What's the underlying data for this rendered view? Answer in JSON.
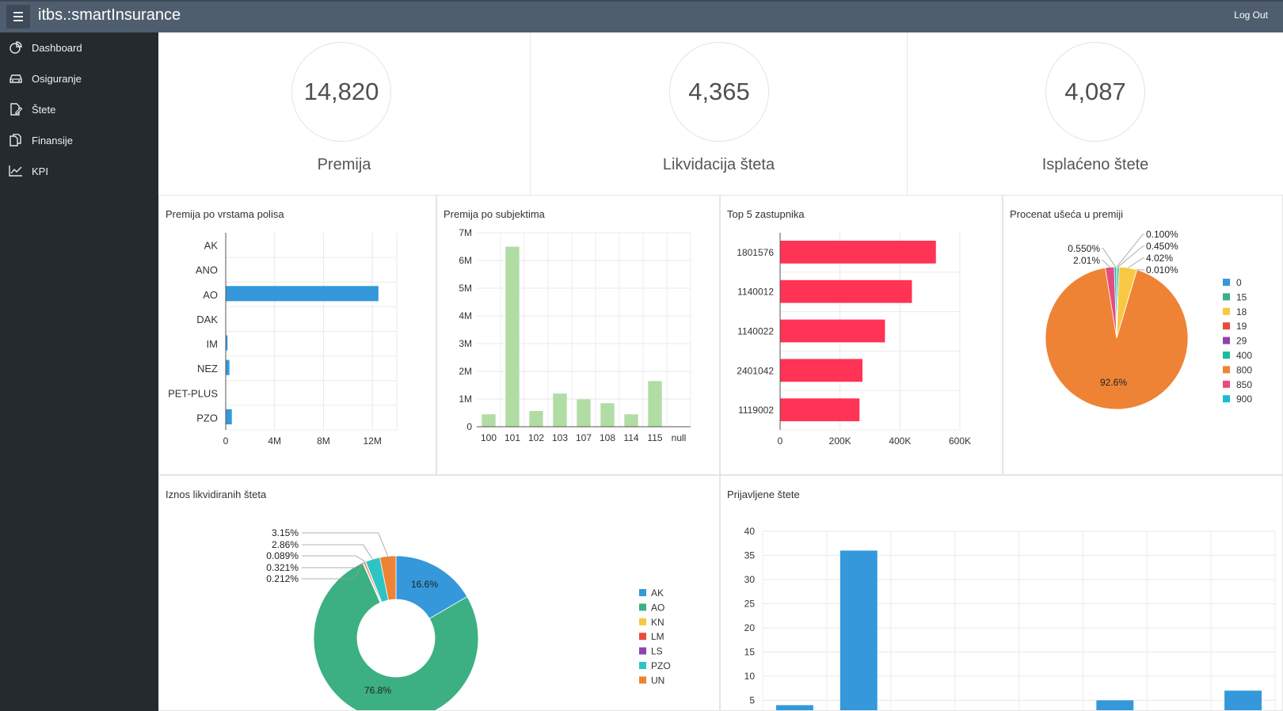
{
  "header": {
    "app_title": "itbs.:smartInsurance",
    "logout_label": "Log Out"
  },
  "sidebar": {
    "items": [
      {
        "label": "Dashboard",
        "icon": "pie-chart-icon"
      },
      {
        "label": "Osiguranje",
        "icon": "car-icon"
      },
      {
        "label": "Štete",
        "icon": "document-edit-icon"
      },
      {
        "label": "Finansije",
        "icon": "copy-documents-icon"
      },
      {
        "label": "KPI",
        "icon": "line-chart-icon"
      }
    ]
  },
  "kpis": [
    {
      "value": "14,820",
      "label": "Premija"
    },
    {
      "value": "4,365",
      "label": "Likvidacija šteta"
    },
    {
      "value": "4,087",
      "label": "Isplaćeno štete"
    }
  ],
  "colors": {
    "blue": "#3498db",
    "green": "#3cb083",
    "light_green": "#b1dda4",
    "red": "#ff3355",
    "orange": "#ee8336",
    "yellow": "#f7c942",
    "topbar": "#4f5e6e",
    "sidebar": "#252a2f"
  },
  "chart_data": [
    {
      "type": "bar",
      "orientation": "horizontal",
      "title": "Premija po vrstama polisa",
      "categories": [
        "AK",
        "ANO",
        "AO",
        "DAK",
        "IM",
        "NEZ",
        "PET-PLUS",
        "PZO"
      ],
      "values": [
        0,
        0,
        12500000,
        0,
        150000,
        300000,
        0,
        500000
      ],
      "xlim": [
        0,
        14000000
      ],
      "x_ticks": [
        0,
        4000000,
        8000000,
        12000000
      ],
      "x_tick_labels": [
        "0",
        "4M",
        "8M",
        "12M"
      ],
      "color": "#3498db",
      "grid": true
    },
    {
      "type": "bar",
      "title": "Premija po subjektima",
      "categories": [
        "100",
        "101",
        "102",
        "103",
        "107",
        "108",
        "114",
        "115",
        "null"
      ],
      "values": [
        450000,
        6500000,
        570000,
        1200000,
        990000,
        850000,
        450000,
        1650000,
        0
      ],
      "ylim": [
        0,
        7000000
      ],
      "y_ticks": [
        0,
        1000000,
        2000000,
        3000000,
        4000000,
        5000000,
        6000000,
        7000000
      ],
      "y_tick_labels": [
        "0",
        "1M",
        "2M",
        "3M",
        "4M",
        "5M",
        "6M",
        "7M"
      ],
      "color": "#b1dda4",
      "grid": true
    },
    {
      "type": "bar",
      "orientation": "horizontal",
      "title": "Top 5 zastupnika",
      "categories": [
        "1801576",
        "1140012",
        "1140022",
        "2401042",
        "1119002"
      ],
      "values": [
        520000,
        440000,
        350000,
        275000,
        265000
      ],
      "xlim": [
        0,
        600000
      ],
      "x_ticks": [
        0,
        200000,
        400000,
        600000
      ],
      "x_tick_labels": [
        "0",
        "200K",
        "400K",
        "600K"
      ],
      "color": "#ff3355",
      "grid": true
    },
    {
      "type": "pie",
      "title": "Procenat ušeća u premiji",
      "legend_position": "right",
      "slices": [
        {
          "name": "0",
          "value": 0.1,
          "label": "0.100%",
          "color": "#3498db"
        },
        {
          "name": "15",
          "value": 0.45,
          "label": "0.450%",
          "color": "#3cb083"
        },
        {
          "name": "18",
          "value": 4.02,
          "label": "4.02%",
          "color": "#f7c942"
        },
        {
          "name": "19",
          "value": 0.01,
          "label": "0.010%",
          "color": "#e74c3c"
        },
        {
          "name": "29",
          "value": 0.0,
          "label": "",
          "color": "#8e44ad"
        },
        {
          "name": "400",
          "value": 0.0,
          "label": "",
          "color": "#1abc9c"
        },
        {
          "name": "800",
          "value": 92.6,
          "label": "92.6%",
          "color": "#ee8336"
        },
        {
          "name": "850",
          "value": 2.01,
          "label": "2.01%",
          "color": "#e84a7f"
        },
        {
          "name": "900",
          "value": 0.55,
          "label": "0.550%",
          "color": "#17becf"
        }
      ]
    },
    {
      "type": "pie",
      "donut": true,
      "title": "Iznos likvidiranih šteta",
      "legend_position": "right",
      "slices": [
        {
          "name": "AK",
          "value": 16.6,
          "label": "16.6%",
          "color": "#3498db"
        },
        {
          "name": "AO",
          "value": 76.8,
          "label": "76.8%",
          "color": "#3cb083"
        },
        {
          "name": "KN",
          "value": 0.212,
          "label": "0.212%",
          "color": "#f7c942"
        },
        {
          "name": "LM",
          "value": 0.321,
          "label": "0.321%",
          "color": "#e74c3c"
        },
        {
          "name": "LS",
          "value": 0.089,
          "label": "0.089%",
          "color": "#8e44ad"
        },
        {
          "name": "PZO",
          "value": 2.86,
          "label": "2.86%",
          "color": "#2ec4c4"
        },
        {
          "name": "UN",
          "value": 3.15,
          "label": "3.15%",
          "color": "#ee8336"
        }
      ]
    },
    {
      "type": "bar",
      "title": "Prijavljene štete",
      "values": [
        4,
        36,
        0,
        0,
        0,
        5,
        0,
        7
      ],
      "ylim": [
        0,
        40
      ],
      "y_ticks": [
        5,
        10,
        15,
        20,
        25,
        30,
        35,
        40
      ],
      "color": "#3498db",
      "grid": true
    }
  ]
}
